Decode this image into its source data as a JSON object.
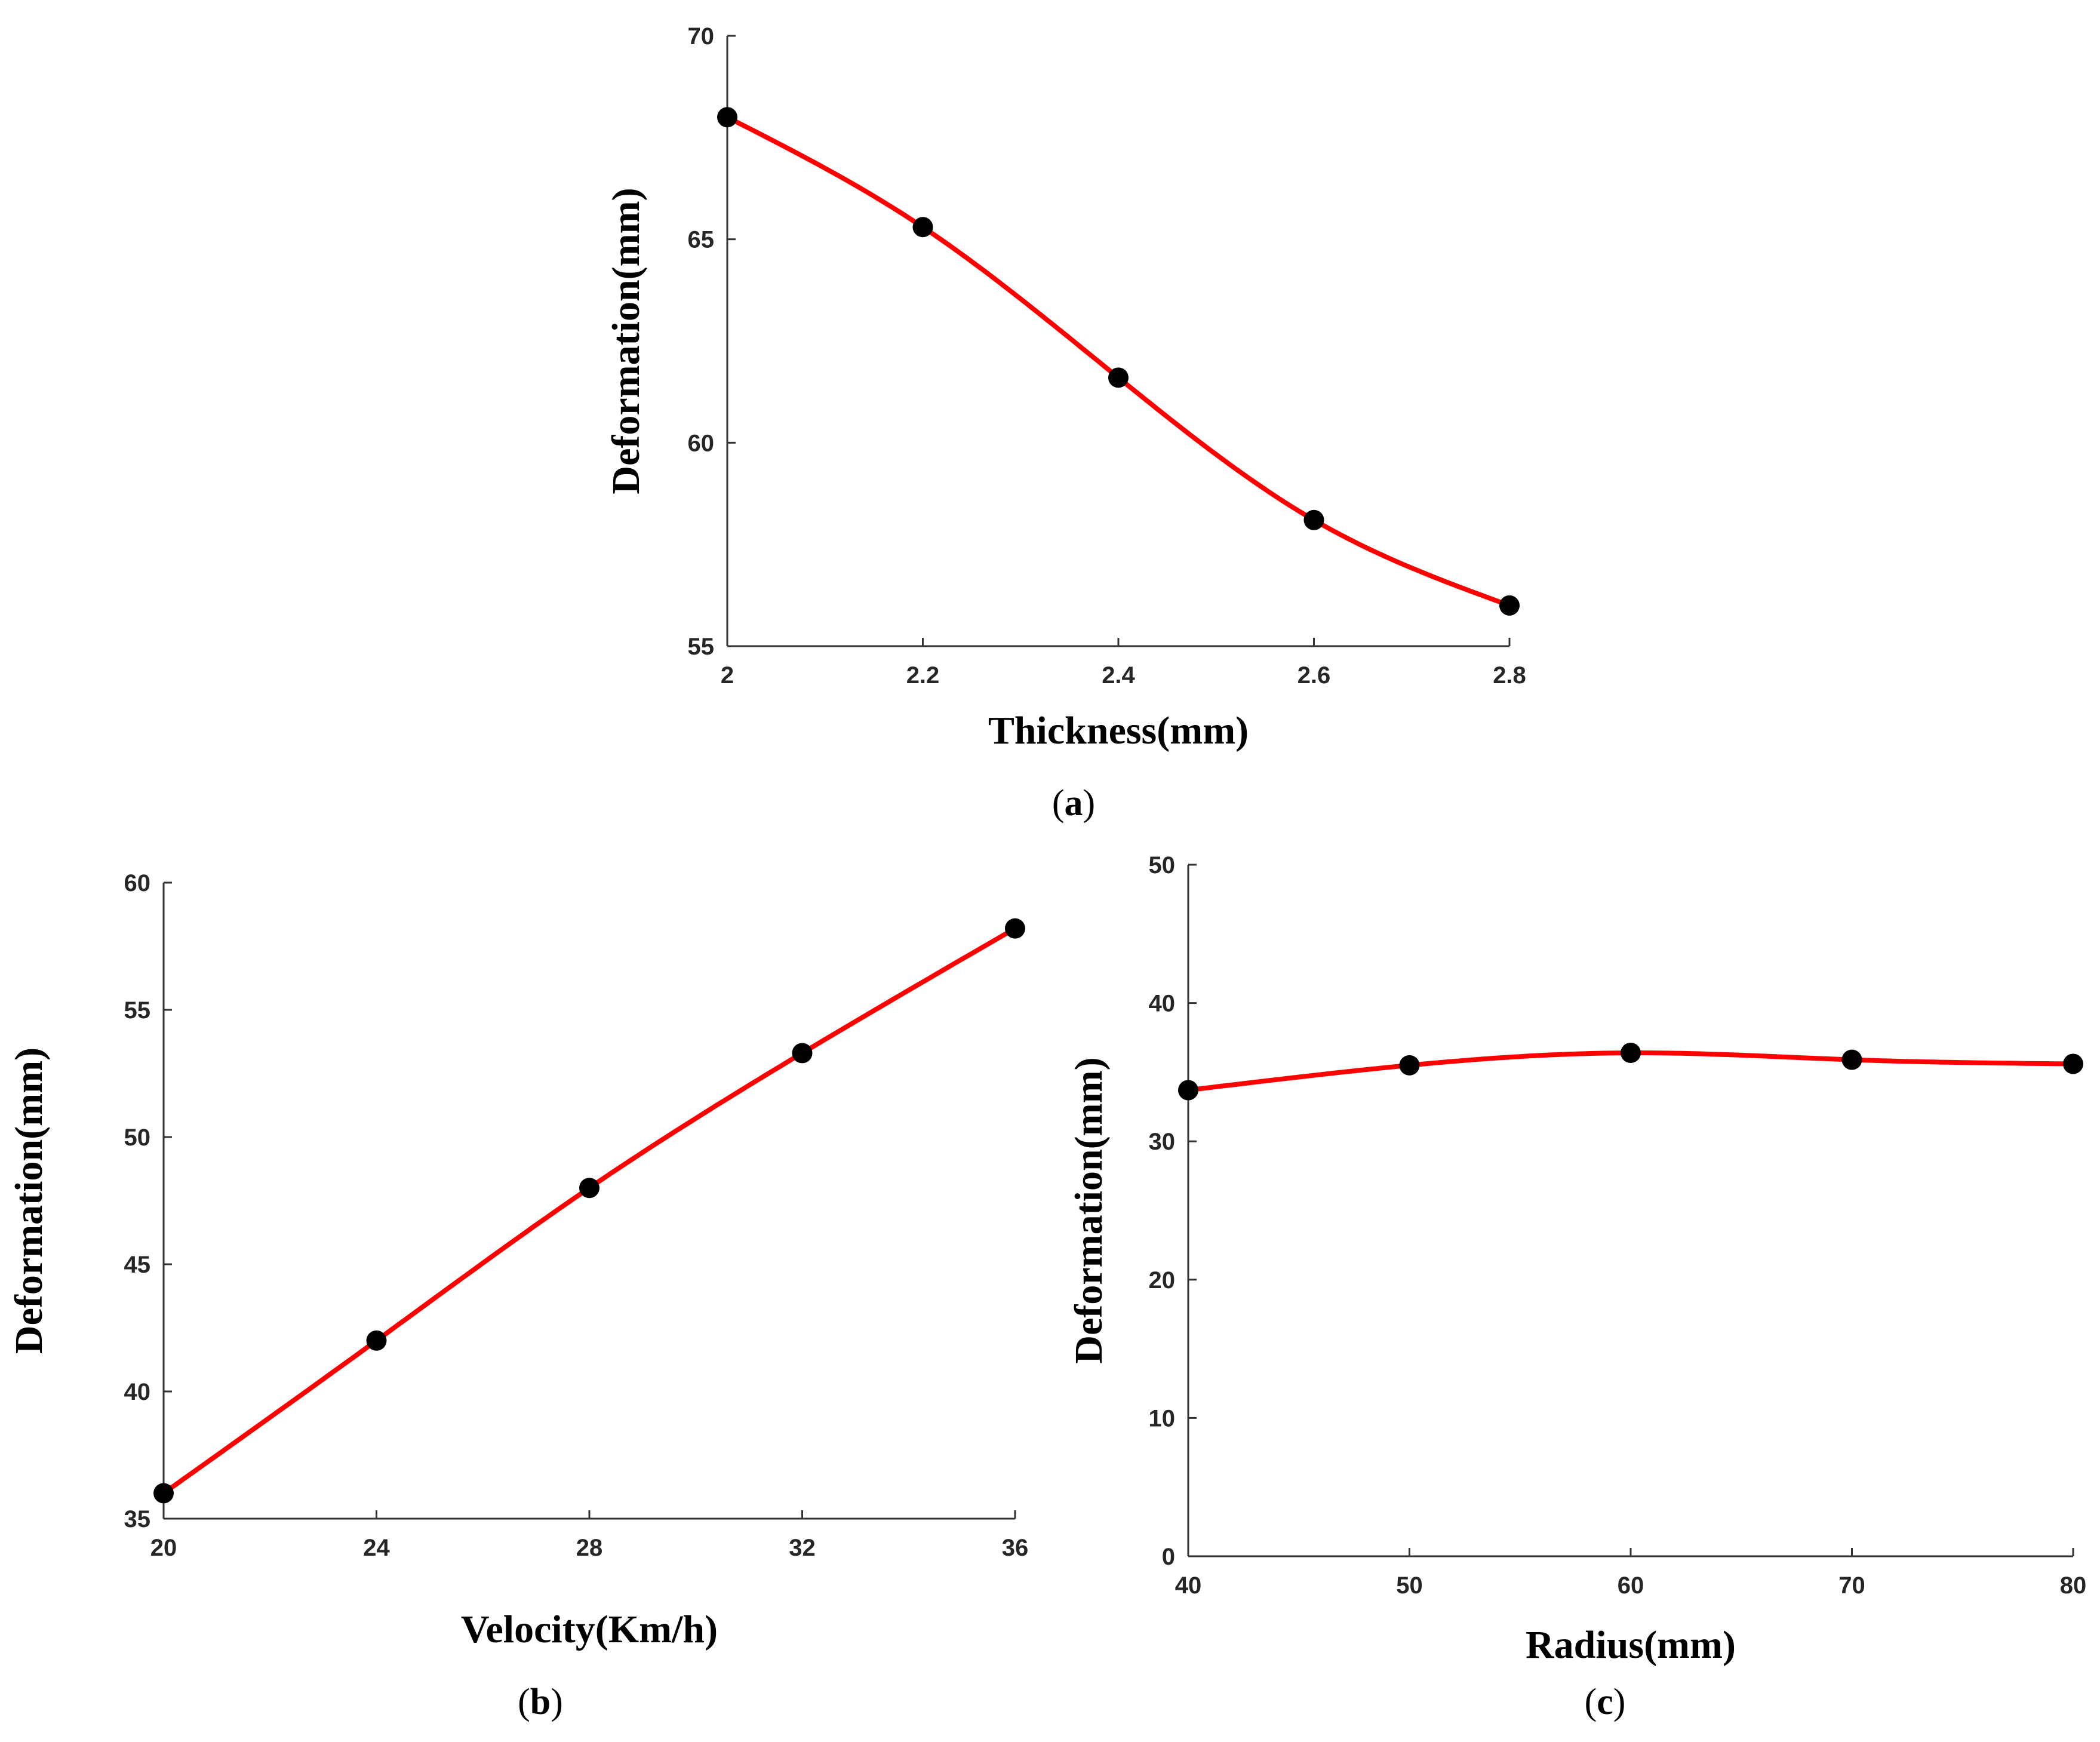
{
  "colors": {
    "line": "#ff0000",
    "marker": "#000000"
  },
  "chart_data": [
    {
      "id": "a",
      "type": "line",
      "panel_label": "a",
      "title": "",
      "xlabel": "Thickness(mm)",
      "ylabel": "Deformation(mm)",
      "x": [
        2.0,
        2.2,
        2.4,
        2.6,
        2.8
      ],
      "y": [
        68.0,
        65.3,
        61.6,
        58.1,
        56.0
      ],
      "xlim": [
        2.0,
        2.8
      ],
      "ylim": [
        55,
        70
      ],
      "xticks": [
        2.0,
        2.2,
        2.4,
        2.6,
        2.8
      ],
      "xtick_labels": [
        "2",
        "2.2",
        "2.4",
        "2.6",
        "2.8"
      ],
      "yticks": [
        55,
        60,
        65,
        70
      ],
      "ytick_labels": [
        "55",
        "60",
        "65",
        "70"
      ],
      "grid": false,
      "series": [
        {
          "name": "Deformation",
          "color": "#ff0000",
          "marker_color": "#000000"
        }
      ]
    },
    {
      "id": "b",
      "type": "line",
      "panel_label": "b",
      "title": "",
      "xlabel": "Velocity(Km/h)",
      "ylabel": "Deformation(mm)",
      "x": [
        20,
        24,
        28,
        32,
        36
      ],
      "y": [
        36.0,
        42.0,
        48.0,
        53.3,
        58.2
      ],
      "xlim": [
        20,
        36
      ],
      "ylim": [
        35,
        60
      ],
      "xticks": [
        20,
        24,
        28,
        32,
        36
      ],
      "xtick_labels": [
        "20",
        "24",
        "28",
        "32",
        "36"
      ],
      "yticks": [
        35,
        40,
        45,
        50,
        55,
        60
      ],
      "ytick_labels": [
        "35",
        "40",
        "45",
        "50",
        "55",
        "60"
      ],
      "grid": false,
      "series": [
        {
          "name": "Deformation",
          "color": "#ff0000",
          "marker_color": "#000000"
        }
      ]
    },
    {
      "id": "c",
      "type": "line",
      "panel_label": "c",
      "title": "",
      "xlabel": "Radius(mm)",
      "ylabel": "Deformation(mm)",
      "x": [
        40,
        50,
        60,
        70,
        80
      ],
      "y": [
        33.7,
        35.5,
        36.4,
        35.9,
        35.6
      ],
      "xlim": [
        40,
        80
      ],
      "ylim": [
        0,
        50
      ],
      "xticks": [
        40,
        50,
        60,
        70,
        80
      ],
      "xtick_labels": [
        "40",
        "50",
        "60",
        "70",
        "80"
      ],
      "yticks": [
        0,
        10,
        20,
        30,
        40,
        50
      ],
      "ytick_labels": [
        "0",
        "10",
        "20",
        "30",
        "40",
        "50"
      ],
      "grid": false,
      "series": [
        {
          "name": "Deformation",
          "color": "#ff0000",
          "marker_color": "#000000"
        }
      ]
    }
  ]
}
